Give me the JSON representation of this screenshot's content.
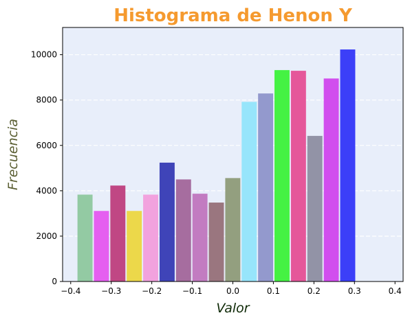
{
  "chart_data": {
    "type": "bar",
    "title": "Histograma de Henon Y",
    "xlabel": "Valor",
    "ylabel": "Frecuencia",
    "xlim": [
      -0.42,
      0.42
    ],
    "ylim": [
      0,
      11200
    ],
    "x_ticks": [
      -0.4,
      -0.3,
      -0.2,
      -0.1,
      0.0,
      0.1,
      0.2,
      0.3,
      0.4
    ],
    "x_tick_labels": [
      "−0.4",
      "−0.3",
      "−0.2",
      "−0.1",
      "0.0",
      "0.1",
      "0.2",
      "0.3",
      "0.4"
    ],
    "y_ticks": [
      0,
      2000,
      4000,
      6000,
      8000,
      10000
    ],
    "y_tick_labels": [
      "0",
      "2000",
      "4000",
      "6000",
      "8000",
      "10000"
    ],
    "grid": "y-dashed",
    "bin_width": 0.0405,
    "bars": [
      {
        "x_start": -0.3833,
        "x_end": -0.3461,
        "value": 3830,
        "color": "#93caa3"
      },
      {
        "x_start": -0.3428,
        "x_end": -0.3056,
        "value": 3110,
        "color": "#e55ff0"
      },
      {
        "x_start": -0.3023,
        "x_end": -0.2651,
        "value": 4230,
        "color": "#c04784"
      },
      {
        "x_start": -0.2618,
        "x_end": -0.2246,
        "value": 3110,
        "color": "#ecd84a"
      },
      {
        "x_start": -0.2213,
        "x_end": -0.1841,
        "value": 3830,
        "color": "#f2a2de"
      },
      {
        "x_start": -0.1808,
        "x_end": -0.1436,
        "value": 5240,
        "color": "#3f44b8"
      },
      {
        "x_start": -0.1403,
        "x_end": -0.1031,
        "value": 4500,
        "color": "#a66d9f"
      },
      {
        "x_start": -0.0998,
        "x_end": -0.0626,
        "value": 3870,
        "color": "#c27cc1"
      },
      {
        "x_start": -0.0593,
        "x_end": -0.0221,
        "value": 3480,
        "color": "#9a767f"
      },
      {
        "x_start": -0.0188,
        "x_end": 0.0184,
        "value": 4560,
        "color": "#939f7f"
      },
      {
        "x_start": 0.0217,
        "x_end": 0.0589,
        "value": 7920,
        "color": "#97e5fb"
      },
      {
        "x_start": 0.0622,
        "x_end": 0.0994,
        "value": 8290,
        "color": "#9399cd"
      },
      {
        "x_start": 0.1027,
        "x_end": 0.1399,
        "value": 9320,
        "color": "#45f243"
      },
      {
        "x_start": 0.1432,
        "x_end": 0.1804,
        "value": 9290,
        "color": "#e5579a"
      },
      {
        "x_start": 0.1837,
        "x_end": 0.2209,
        "value": 6420,
        "color": "#9293a6"
      },
      {
        "x_start": 0.2242,
        "x_end": 0.2614,
        "value": 8950,
        "color": "#d14eee"
      },
      {
        "x_start": 0.2647,
        "x_end": 0.3019,
        "value": 10230,
        "color": "#3c3ff8"
      }
    ],
    "colors": {
      "title": "#f59a2f",
      "xlabel": "#0f2a07",
      "ylabel": "#5a5e32",
      "plot_background": "#e8eefa",
      "grid": "#ffffff"
    }
  }
}
